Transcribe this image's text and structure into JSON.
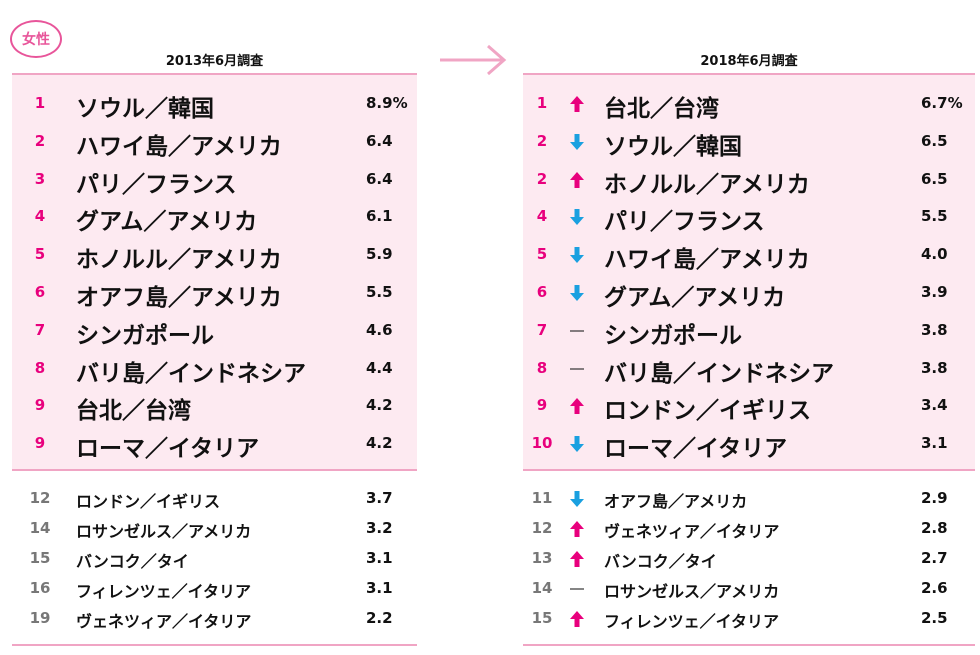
{
  "badge": "女性",
  "colors": {
    "pink": "#e8007d",
    "blue": "#1aa0e0",
    "panel": "#fdeaf1",
    "line": "#f0a5c4"
  },
  "left": {
    "title": "2013年6月調査",
    "top": [
      {
        "rank": "1",
        "name": "ソウル／韓国",
        "value": "8.9%"
      },
      {
        "rank": "2",
        "name": "ハワイ島／アメリカ",
        "value": "6.4"
      },
      {
        "rank": "3",
        "name": "パリ／フランス",
        "value": "6.4"
      },
      {
        "rank": "4",
        "name": "グアム／アメリカ",
        "value": "6.1"
      },
      {
        "rank": "5",
        "name": "ホノルル／アメリカ",
        "value": "5.9"
      },
      {
        "rank": "6",
        "name": "オアフ島／アメリカ",
        "value": "5.5"
      },
      {
        "rank": "7",
        "name": "シンガポール",
        "value": "4.6"
      },
      {
        "rank": "8",
        "name": "バリ島／インドネシア",
        "value": "4.4"
      },
      {
        "rank": "9",
        "name": "台北／台湾",
        "value": "4.2"
      },
      {
        "rank": "9",
        "name": "ローマ／イタリア",
        "value": "4.2"
      }
    ],
    "rest": [
      {
        "rank": "12",
        "name": "ロンドン／イギリス",
        "value": "3.7"
      },
      {
        "rank": "14",
        "name": "ロサンゼルス／アメリカ",
        "value": "3.2"
      },
      {
        "rank": "15",
        "name": "バンコク／タイ",
        "value": "3.1"
      },
      {
        "rank": "16",
        "name": "フィレンツェ／イタリア",
        "value": "3.1"
      },
      {
        "rank": "19",
        "name": "ヴェネツィア／イタリア",
        "value": "2.2"
      }
    ]
  },
  "right": {
    "title": "2018年6月調査",
    "top": [
      {
        "rank": "1",
        "trend": "up",
        "name": "台北／台湾",
        "value": "6.7%"
      },
      {
        "rank": "2",
        "trend": "down",
        "name": "ソウル／韓国",
        "value": "6.5"
      },
      {
        "rank": "2",
        "trend": "up",
        "name": "ホノルル／アメリカ",
        "value": "6.5"
      },
      {
        "rank": "4",
        "trend": "down",
        "name": "パリ／フランス",
        "value": "5.5"
      },
      {
        "rank": "5",
        "trend": "down",
        "name": "ハワイ島／アメリカ",
        "value": "4.0"
      },
      {
        "rank": "6",
        "trend": "down",
        "name": "グアム／アメリカ",
        "value": "3.9"
      },
      {
        "rank": "7",
        "trend": "same",
        "name": "シンガポール",
        "value": "3.8"
      },
      {
        "rank": "8",
        "trend": "same",
        "name": "バリ島／インドネシア",
        "value": "3.8"
      },
      {
        "rank": "9",
        "trend": "up",
        "name": "ロンドン／イギリス",
        "value": "3.4"
      },
      {
        "rank": "10",
        "trend": "down",
        "name": "ローマ／イタリア",
        "value": "3.1"
      }
    ],
    "rest": [
      {
        "rank": "11",
        "trend": "down",
        "name": "オアフ島／アメリカ",
        "value": "2.9"
      },
      {
        "rank": "12",
        "trend": "up",
        "name": "ヴェネツィア／イタリア",
        "value": "2.8"
      },
      {
        "rank": "13",
        "trend": "up",
        "name": "バンコク／タイ",
        "value": "2.7"
      },
      {
        "rank": "14",
        "trend": "same",
        "name": "ロサンゼルス／アメリカ",
        "value": "2.6"
      },
      {
        "rank": "15",
        "trend": "up",
        "name": "フィレンツェ／イタリア",
        "value": "2.5"
      }
    ]
  }
}
